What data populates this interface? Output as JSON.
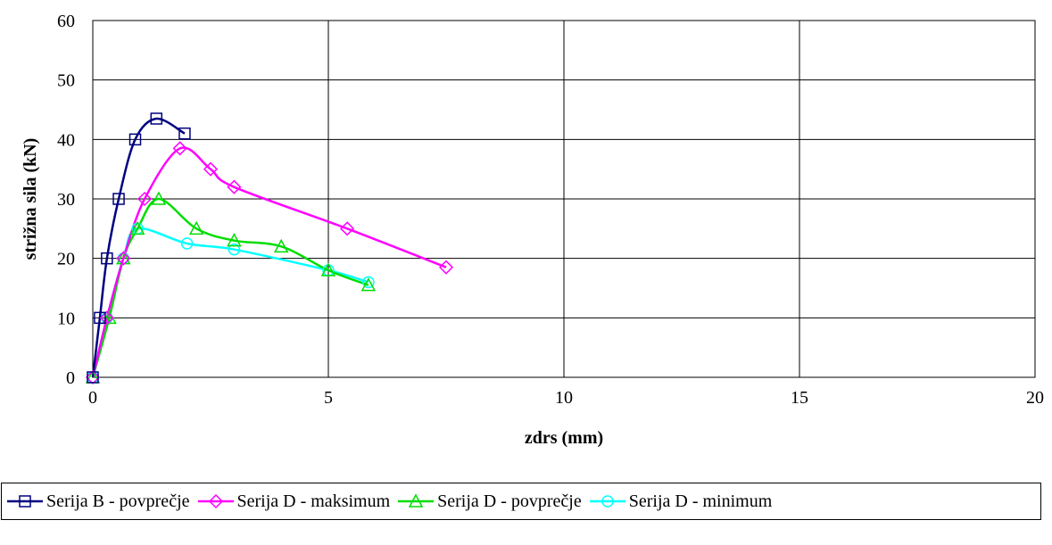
{
  "chart_data": {
    "type": "line",
    "xlabel": "zdrs (mm)",
    "ylabel": "strižna sila (kN)",
    "xlim": [
      0,
      20
    ],
    "ylim": [
      0,
      60
    ],
    "xticks": [
      "0",
      "5",
      "10",
      "15",
      "20"
    ],
    "yticks": [
      "0",
      "10",
      "20",
      "30",
      "40",
      "50",
      "60"
    ],
    "grid": true,
    "legend_position": "bottom",
    "series": [
      {
        "name": "Serija B - povprečje",
        "color": "#000080",
        "marker": "square",
        "x": [
          0,
          0.15,
          0.3,
          0.55,
          0.9,
          1.35,
          1.95
        ],
        "y": [
          0,
          10,
          20,
          30,
          40,
          43.5,
          41
        ]
      },
      {
        "name": "Serija D - maksimum",
        "color": "#ff00ff",
        "marker": "diamond",
        "x": [
          0,
          0.3,
          0.65,
          1.1,
          1.85,
          2.5,
          3.0,
          5.4,
          7.5
        ],
        "y": [
          0,
          10,
          20,
          30,
          38.5,
          35,
          32,
          25,
          18.5
        ]
      },
      {
        "name": "Serija D - povprečje",
        "color": "#00dd00",
        "marker": "triangle",
        "x": [
          0,
          0.35,
          0.65,
          0.95,
          1.4,
          2.2,
          3.0,
          4.0,
          5.0,
          5.85
        ],
        "y": [
          0,
          10,
          20,
          25,
          30,
          25,
          23,
          22,
          18,
          15.5
        ]
      },
      {
        "name": "Serija D - minimum",
        "color": "#00ffff",
        "marker": "circle",
        "x": [
          0,
          0.3,
          0.65,
          0.95,
          2.0,
          3.0,
          5.0,
          5.85
        ],
        "y": [
          0,
          10,
          20,
          25,
          22.5,
          21.5,
          18,
          16
        ]
      }
    ]
  }
}
